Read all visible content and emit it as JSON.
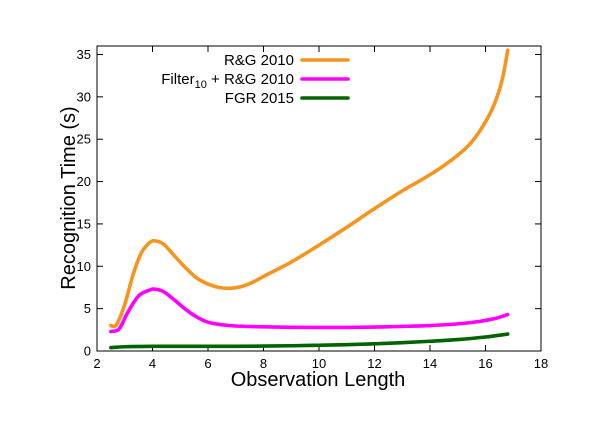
{
  "chart_data": {
    "type": "line",
    "xlabel": "Observation Length",
    "ylabel": "Recognition Time (s)",
    "xlim": [
      2,
      18
    ],
    "ylim": [
      0,
      36
    ],
    "xticks": [
      2,
      4,
      6,
      8,
      10,
      12,
      14,
      16,
      18
    ],
    "yticks": [
      0,
      5,
      10,
      15,
      20,
      25,
      30,
      35
    ],
    "grid": false,
    "legend_position": "top-center",
    "series": [
      {
        "name": "R&G 2010",
        "name_main": "R&G 2010",
        "name_sub": "",
        "name_tail": "",
        "color": "#f7941d",
        "x": [
          2.5,
          2.7,
          3.0,
          3.3,
          3.6,
          3.9,
          4.1,
          4.4,
          4.8,
          5.2,
          5.6,
          6.0,
          6.4,
          6.8,
          7.2,
          7.6,
          8.0,
          9.0,
          10.0,
          11.0,
          12.0,
          13.0,
          14.0,
          14.8,
          15.4,
          15.9,
          16.3,
          16.6,
          16.8
        ],
        "y": [
          3.0,
          3.1,
          5.5,
          9.0,
          11.6,
          12.8,
          13.0,
          12.6,
          11.2,
          9.8,
          8.6,
          7.9,
          7.5,
          7.4,
          7.6,
          8.1,
          8.8,
          10.5,
          12.5,
          14.6,
          16.8,
          18.9,
          20.8,
          22.6,
          24.3,
          26.5,
          29.0,
          32.0,
          35.5
        ]
      },
      {
        "name": "Filter10 + R&G 2010",
        "name_main": "Filter",
        "name_sub": "10",
        "name_tail": " + R&G 2010",
        "color": "#ff00ff",
        "x": [
          2.5,
          2.8,
          3.1,
          3.5,
          3.9,
          4.1,
          4.4,
          4.8,
          5.2,
          5.6,
          6.0,
          6.5,
          7.0,
          8.0,
          9.0,
          10.0,
          11.0,
          12.0,
          13.0,
          14.0,
          15.0,
          15.8,
          16.3,
          16.8
        ],
        "y": [
          2.3,
          2.6,
          4.5,
          6.5,
          7.2,
          7.3,
          7.0,
          6.0,
          4.9,
          4.0,
          3.4,
          3.1,
          2.95,
          2.85,
          2.8,
          2.78,
          2.78,
          2.82,
          2.9,
          3.0,
          3.2,
          3.5,
          3.8,
          4.3
        ]
      },
      {
        "name": "FGR 2015",
        "name_main": "FGR 2015",
        "name_sub": "",
        "name_tail": "",
        "color": "#006400",
        "x": [
          2.5,
          3.0,
          4.0,
          5.0,
          6.0,
          7.0,
          8.0,
          9.0,
          10.0,
          11.0,
          12.0,
          13.0,
          14.0,
          15.0,
          16.0,
          16.8
        ],
        "y": [
          0.4,
          0.5,
          0.55,
          0.55,
          0.55,
          0.55,
          0.58,
          0.62,
          0.68,
          0.75,
          0.85,
          0.98,
          1.15,
          1.35,
          1.65,
          2.0
        ]
      }
    ]
  }
}
